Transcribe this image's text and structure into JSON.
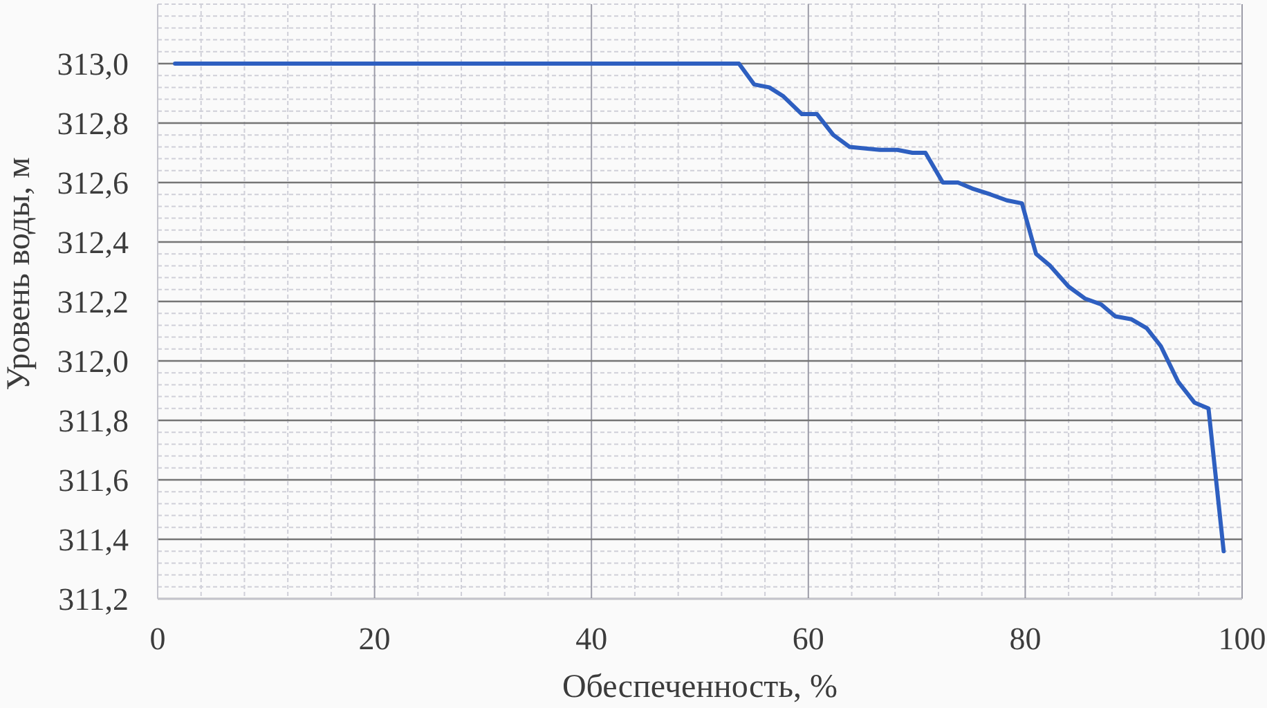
{
  "chart_data": {
    "type": "line",
    "xlabel": "Обеспеченность, %",
    "ylabel": "Уровень воды, м",
    "x": [
      1.6,
      53.6,
      55.0,
      56.4,
      57.7,
      59.4,
      60.8,
      62.3,
      63.8,
      66.6,
      68.2,
      69.6,
      70.8,
      72.4,
      73.8,
      75.1,
      76.8,
      78.3,
      79.7,
      81.0,
      82.3,
      84.0,
      85.5,
      87.0,
      88.3,
      89.8,
      91.2,
      92.5,
      94.1,
      95.6,
      96.9,
      98.3
    ],
    "values": [
      313.0,
      313.0,
      312.93,
      312.92,
      312.89,
      312.83,
      312.83,
      312.76,
      312.72,
      312.71,
      312.71,
      312.7,
      312.7,
      312.6,
      312.6,
      312.58,
      312.56,
      312.54,
      312.53,
      312.36,
      312.32,
      312.25,
      312.21,
      312.19,
      312.15,
      312.14,
      312.11,
      312.05,
      311.93,
      311.86,
      311.84,
      311.36
    ],
    "color": "#2e5fc0",
    "marker": "none",
    "line_style": "solid",
    "grid": true,
    "xlim": [
      0,
      100
    ],
    "xticks": [
      0,
      {
        "value": 4,
        "label": null
      },
      {
        "value": 8,
        "label": null
      },
      {
        "value": 12,
        "label": null
      },
      {
        "value": 16,
        "label": null
      },
      20,
      {
        "value": 24,
        "label": null
      },
      {
        "value": 28,
        "label": null
      },
      {
        "value": 32,
        "label": null
      },
      {
        "value": 36,
        "label": null
      },
      40,
      {
        "value": 44,
        "label": null
      },
      {
        "value": 48,
        "label": null
      },
      {
        "value": 52,
        "label": null
      },
      {
        "value": 56,
        "label": null
      },
      60,
      {
        "value": 64,
        "label": null
      },
      {
        "value": 68,
        "label": null
      },
      {
        "value": 72,
        "label": null
      },
      {
        "value": 76,
        "label": null
      },
      80,
      {
        "value": 84,
        "label": null
      },
      {
        "value": 88,
        "label": null
      },
      {
        "value": 92,
        "label": null
      },
      {
        "value": 96,
        "label": null
      },
      100
    ],
    "ylim": [
      311.2,
      313.2
    ],
    "yticks": [
      {
        "value": 311.2,
        "label": "311,2"
      },
      {
        "value": 311.24,
        "label": null
      },
      {
        "value": 311.28,
        "label": null
      },
      {
        "value": 311.32,
        "label": null
      },
      {
        "value": 311.36,
        "label": null
      },
      {
        "value": 311.4,
        "label": "311,4"
      },
      {
        "value": 311.44,
        "label": null
      },
      {
        "value": 311.48,
        "label": null
      },
      {
        "value": 311.52,
        "label": null
      },
      {
        "value": 311.56,
        "label": null
      },
      {
        "value": 311.6,
        "label": "311,6"
      },
      {
        "value": 311.64,
        "label": null
      },
      {
        "value": 311.68,
        "label": null
      },
      {
        "value": 311.72,
        "label": null
      },
      {
        "value": 311.76,
        "label": null
      },
      {
        "value": 311.8,
        "label": "311,8"
      },
      {
        "value": 311.84,
        "label": null
      },
      {
        "value": 311.88,
        "label": null
      },
      {
        "value": 311.92,
        "label": null
      },
      {
        "value": 311.96,
        "label": null
      },
      {
        "value": 312.0,
        "label": "312,0"
      },
      {
        "value": 312.04,
        "label": null
      },
      {
        "value": 312.08,
        "label": null
      },
      {
        "value": 312.12,
        "label": null
      },
      {
        "value": 312.16,
        "label": null
      },
      {
        "value": 312.2,
        "label": "312,2"
      },
      {
        "value": 312.24,
        "label": null
      },
      {
        "value": 312.28,
        "label": null
      },
      {
        "value": 312.32,
        "label": null
      },
      {
        "value": 312.36,
        "label": null
      },
      {
        "value": 312.4,
        "label": "312,4"
      },
      {
        "value": 312.44,
        "label": null
      },
      {
        "value": 312.48,
        "label": null
      },
      {
        "value": 312.52,
        "label": null
      },
      {
        "value": 312.56,
        "label": null
      },
      {
        "value": 312.6,
        "label": "312,6"
      },
      {
        "value": 312.64,
        "label": null
      },
      {
        "value": 312.68,
        "label": null
      },
      {
        "value": 312.72,
        "label": null
      },
      {
        "value": 312.76,
        "label": null
      },
      {
        "value": 312.8,
        "label": "312,8"
      },
      {
        "value": 312.84,
        "label": null
      },
      {
        "value": 312.88,
        "label": null
      },
      {
        "value": 312.92,
        "label": null
      },
      {
        "value": 312.96,
        "label": null
      },
      {
        "value": 313.0,
        "label": "313,0"
      },
      {
        "value": 313.04,
        "label": null
      },
      {
        "value": 313.08,
        "label": null
      },
      {
        "value": 313.12,
        "label": null
      },
      {
        "value": 313.16,
        "label": null
      },
      {
        "value": 313.2,
        "label": null
      }
    ]
  }
}
